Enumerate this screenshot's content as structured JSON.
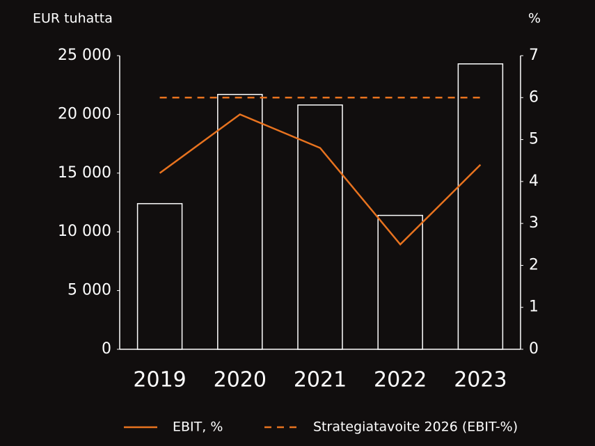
{
  "chart_data": {
    "type": "bar",
    "y_label": "EUR tuhatta",
    "y2_label": "%",
    "categories": [
      "2019",
      "2020",
      "2021",
      "2022",
      "2023"
    ],
    "series": [
      {
        "type": "bar",
        "color": "#ffffff",
        "values": [
          12400,
          21700,
          20800,
          11400,
          24300
        ]
      },
      {
        "type": "line",
        "name": "EBIT, %",
        "color": "#e8731f",
        "axis": "y2",
        "values": [
          4.2,
          5.6,
          4.8,
          2.5,
          4.4
        ]
      },
      {
        "type": "line",
        "name": "Strategiatavoite 2026 (EBIT-%)",
        "color": "#e8731f",
        "dashed": true,
        "axis": "y2",
        "values": [
          6,
          6,
          6,
          6,
          6
        ]
      }
    ],
    "ylim": [
      0,
      25000
    ],
    "yticks": [
      0,
      {
        "value": 5000,
        "label": "5 000"
      },
      {
        "value": 10000,
        "label": "10 000"
      },
      {
        "value": 15000,
        "label": "15 000"
      },
      {
        "value": 20000,
        "label": "20 000"
      },
      {
        "value": 25000,
        "label": "25 000"
      }
    ],
    "y2lim": [
      0,
      7
    ],
    "y2ticks": [
      0,
      1,
      2,
      3,
      4,
      5,
      6,
      7
    ],
    "legend": "bottom"
  }
}
